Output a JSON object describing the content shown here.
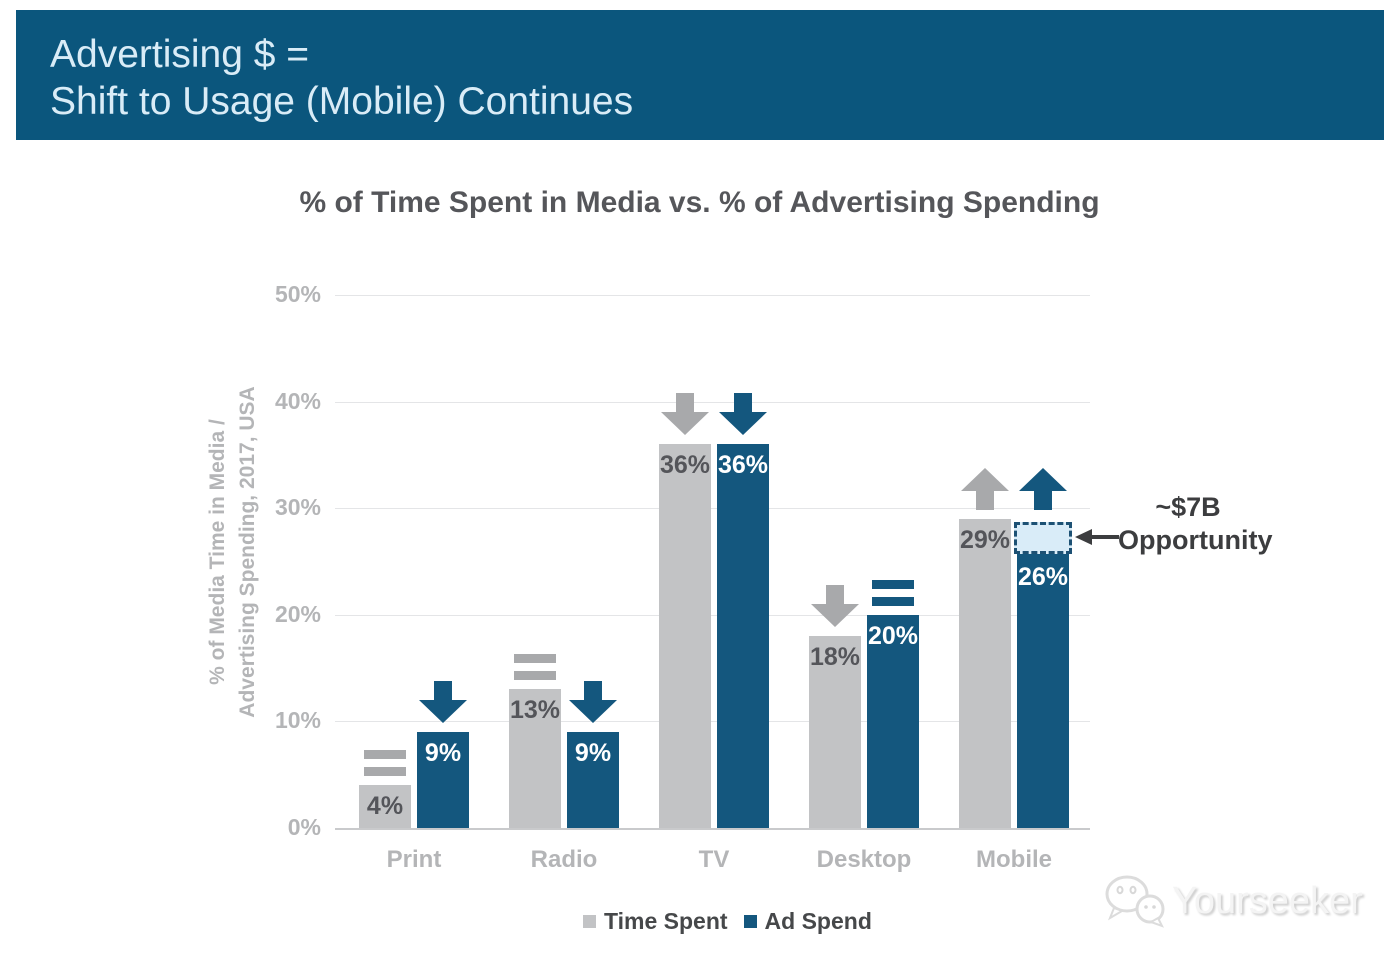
{
  "header": {
    "line1": "Advertising $ =",
    "line2": "Shift to Usage (Mobile) Continues"
  },
  "chart_data": {
    "type": "bar",
    "title": "% of Time Spent in Media vs. % of Advertising Spending",
    "ylabel_lines": [
      "% of Media Time in Media /",
      "Advertising Spending, 2017, USA"
    ],
    "categories": [
      "Print",
      "Radio",
      "TV",
      "Desktop",
      "Mobile"
    ],
    "series": [
      {
        "name": "Time Spent",
        "color": "#c2c3c5",
        "label_color": "#54555a",
        "icon_color": "#a8a9ab",
        "values": [
          4,
          13,
          36,
          18,
          29
        ],
        "value_labels": [
          "4%",
          "13%",
          "36%",
          "18%",
          "29%"
        ],
        "trend_icons": [
          "equals",
          "equals",
          "down",
          "down",
          "up"
        ]
      },
      {
        "name": "Ad Spend",
        "color": "#14577e",
        "label_color": "#ffffff",
        "icon_color": "#14577e",
        "values": [
          9,
          9,
          36,
          20,
          26
        ],
        "value_labels": [
          "9%",
          "9%",
          "36%",
          "20%",
          "26%"
        ],
        "trend_icons": [
          "down",
          "down",
          "down",
          "equals",
          "up"
        ]
      }
    ],
    "yticks": [
      {
        "label": "50%",
        "value": 50
      },
      {
        "label": "40%",
        "value": 40
      },
      {
        "label": "30%",
        "value": 30
      },
      {
        "label": "20%",
        "value": 20
      },
      {
        "label": "10%",
        "value": 10
      },
      {
        "label": "0%",
        "value": 0
      }
    ],
    "ylim": [
      0,
      50
    ],
    "grid": true,
    "legend_position": "bottom",
    "annotation": {
      "line1": "~$7B",
      "line2": "Opportunity",
      "applies_to": {
        "series": "Ad Spend",
        "category": "Mobile",
        "from_value": 26,
        "to_value": 29
      },
      "box_fill": "#d9ecf8",
      "box_border": "#1d5174",
      "arrow_color": "#3c3d3f",
      "text_color": "#3c3d3f"
    }
  },
  "legend": {
    "items": [
      {
        "label": "Time Spent",
        "color": "#c2c3c5"
      },
      {
        "label": "Ad Spend",
        "color": "#14577e"
      }
    ]
  },
  "watermark": {
    "text": "Yourseeker",
    "icon": "chat-bubbles-icon"
  },
  "theme": {
    "banner_bg": "#0b567d",
    "banner_text": "#d9ecf7",
    "title_color": "#55565a",
    "axis_text": "#b4b5b7",
    "gridline": "#e4e5e7"
  }
}
